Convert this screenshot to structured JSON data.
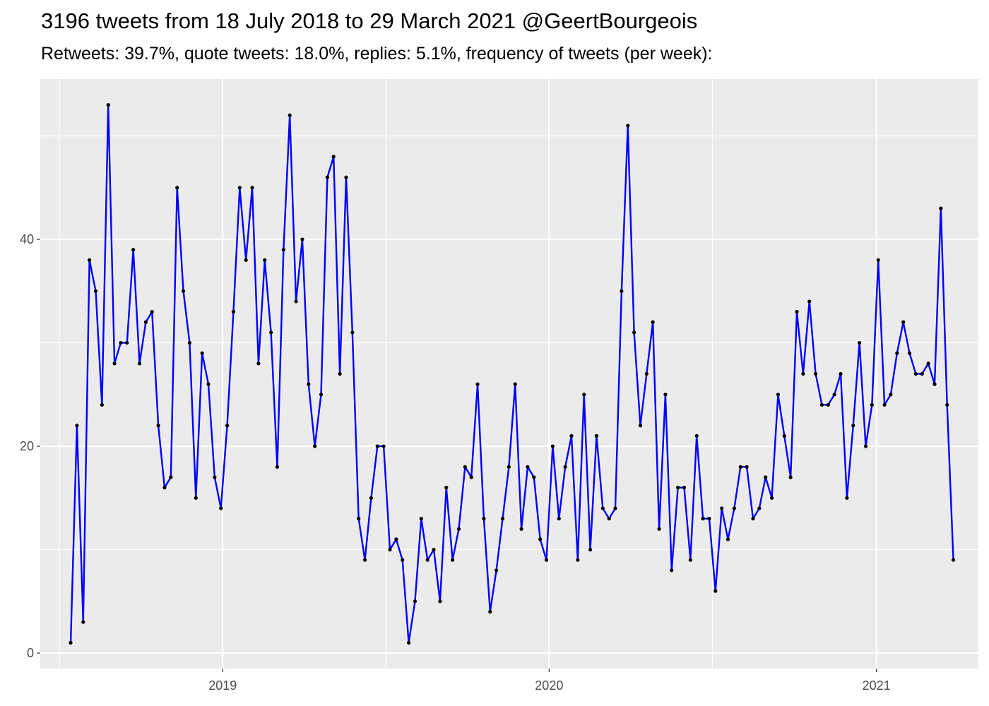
{
  "title": "3196 tweets from 18 July 2018 to 29 March 2021 @GeertBourgeois",
  "subtitle": "Retweets: 39.7%, quote tweets: 18.0%, replies: 5.1%, frequency of tweets (per week):",
  "chart_data": {
    "type": "line",
    "title": "3196 tweets from 18 July 2018 to 29 March 2021 @GeertBourgeois",
    "subtitle": "Retweets: 39.7%, quote tweets: 18.0%, replies: 5.1%, frequency of tweets (per week):",
    "xlabel": "",
    "ylabel": "",
    "x_start": "2018-07-15",
    "x_step_days": 7,
    "xlim": [
      "2018-06-11",
      "2021-04-25"
    ],
    "ylim": [
      -1.5,
      55.5
    ],
    "y_ticks": [
      0,
      20,
      40
    ],
    "x_ticks": [
      {
        "date": "2019-01-01",
        "label": "2019"
      },
      {
        "date": "2020-01-01",
        "label": "2020"
      },
      {
        "date": "2021-01-01",
        "label": "2021"
      }
    ],
    "grid": true,
    "legend": "none",
    "line_color": "#0000ff",
    "point_color": "#000000",
    "panel_color": "#ebebeb",
    "series": [
      {
        "values": [
          1,
          22,
          3,
          38,
          35,
          24,
          53,
          28,
          30,
          30,
          39,
          28,
          32,
          33,
          22,
          16,
          17,
          45,
          35,
          30,
          15,
          29,
          26,
          17,
          14,
          22,
          33,
          45,
          38,
          45,
          28,
          38,
          31,
          18,
          39,
          52,
          34,
          40,
          26,
          20,
          25,
          46,
          48,
          27,
          46,
          31,
          13,
          9,
          15,
          20,
          20,
          10,
          11,
          9,
          1,
          5,
          13,
          9,
          10,
          5,
          16,
          9,
          12,
          18,
          17,
          26,
          13,
          4,
          8,
          13,
          18,
          26,
          12,
          18,
          17,
          11,
          9,
          20,
          13,
          18,
          21,
          9,
          25,
          10,
          21,
          14,
          13,
          14,
          35,
          51,
          31,
          22,
          27,
          32,
          12,
          25,
          8,
          16,
          16,
          9,
          21,
          13,
          13,
          6,
          14,
          11,
          14,
          18,
          18,
          13,
          14,
          17,
          15,
          25,
          21,
          17,
          33,
          27,
          34,
          27,
          24,
          24,
          25,
          27,
          15,
          22,
          30,
          20,
          24,
          38,
          24,
          25,
          29,
          32,
          29,
          27,
          27,
          28,
          26,
          43,
          24,
          9
        ]
      }
    ]
  }
}
